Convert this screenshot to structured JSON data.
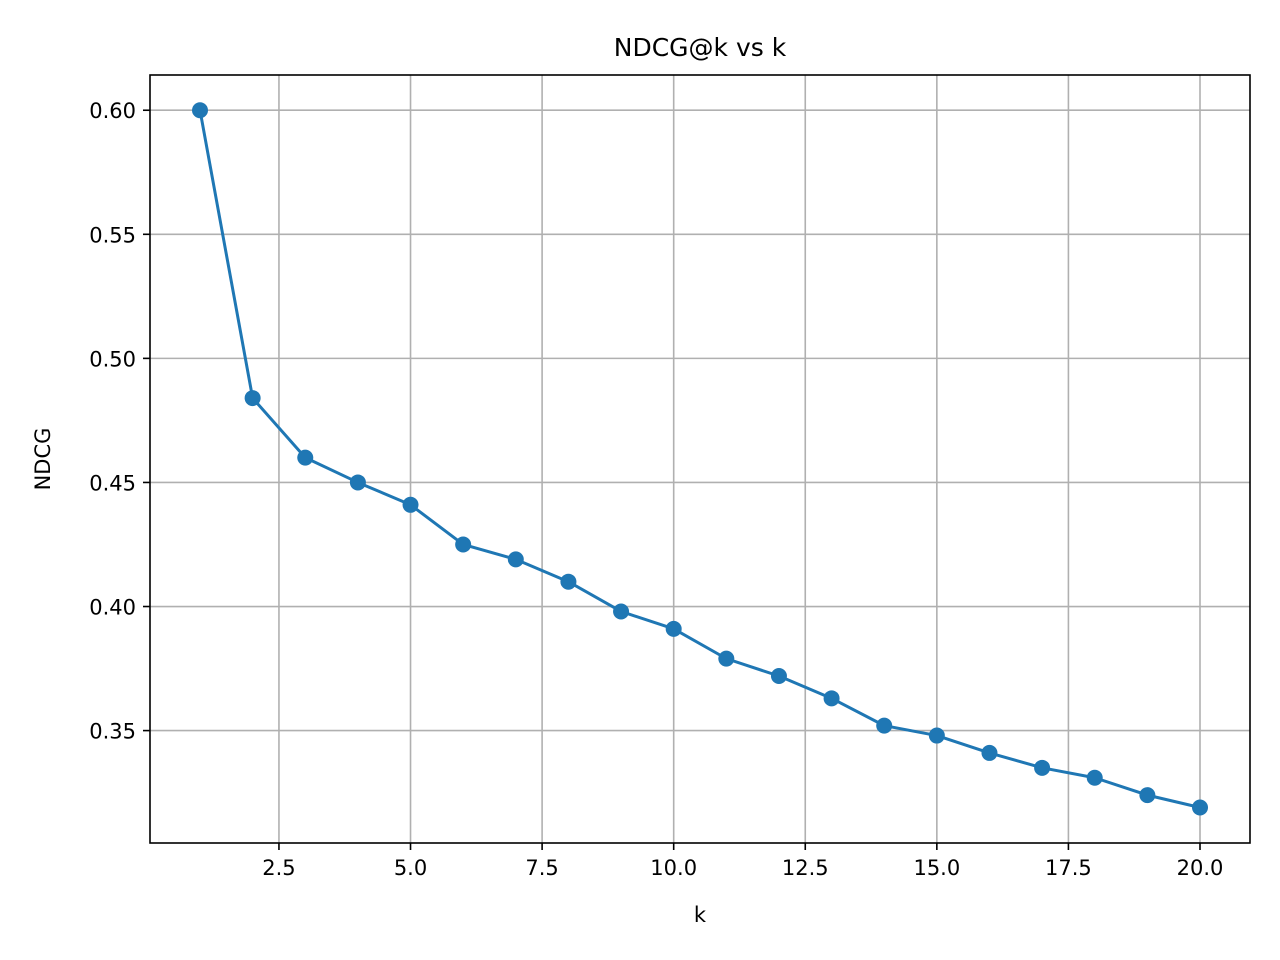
{
  "chart_data": {
    "type": "line",
    "title": "NDCG@k vs k",
    "xlabel": "k",
    "ylabel": "NDCG",
    "xlim": [
      0.05,
      20.95
    ],
    "ylim": [
      0.3047,
      0.6142
    ],
    "grid": true,
    "xticks": [
      2.5,
      5.0,
      7.5,
      10.0,
      12.5,
      15.0,
      17.5,
      20.0
    ],
    "xtick_labels": [
      "2.5",
      "5.0",
      "7.5",
      "10.0",
      "12.5",
      "15.0",
      "17.5",
      "20.0"
    ],
    "yticks": [
      0.35,
      0.4,
      0.45,
      0.5,
      0.55,
      0.6
    ],
    "ytick_labels": [
      "0.35",
      "0.40",
      "0.45",
      "0.50",
      "0.55",
      "0.60"
    ],
    "series": [
      {
        "color": "#1f77b4",
        "marker": "circle",
        "x": [
          1,
          2,
          3,
          4,
          5,
          6,
          7,
          8,
          9,
          10,
          11,
          12,
          13,
          14,
          15,
          16,
          17,
          18,
          19,
          20
        ],
        "y": [
          0.6,
          0.484,
          0.46,
          0.45,
          0.441,
          0.425,
          0.419,
          0.41,
          0.398,
          0.391,
          0.379,
          0.372,
          0.363,
          0.352,
          0.348,
          0.341,
          0.335,
          0.331,
          0.324,
          0.319
        ]
      }
    ]
  }
}
